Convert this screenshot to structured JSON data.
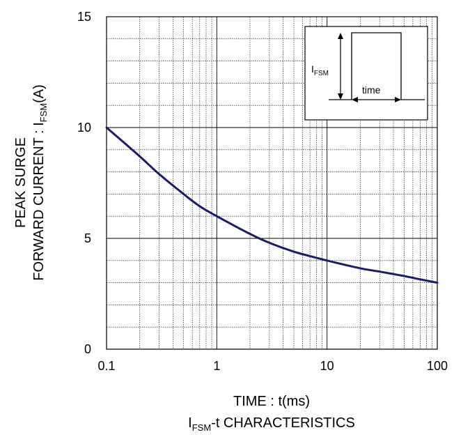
{
  "chart_data": {
    "type": "line",
    "x_scale": "log",
    "xlim": [
      0.1,
      100
    ],
    "ylim": [
      0,
      15
    ],
    "x_ticks": [
      "0.1",
      "1",
      "10",
      "100"
    ],
    "y_ticks": [
      "0",
      "5",
      "10",
      "15"
    ],
    "grid": true,
    "series": [
      {
        "color": "#1a1a6e",
        "x": [
          0.1,
          0.2,
          0.3,
          0.5,
          0.7,
          1,
          2,
          3,
          5,
          7,
          10,
          20,
          30,
          50,
          70,
          100
        ],
        "y": [
          10.0,
          8.7,
          7.9,
          7.0,
          6.45,
          6.0,
          5.2,
          4.8,
          4.4,
          4.2,
          4.0,
          3.65,
          3.5,
          3.3,
          3.15,
          3.0
        ]
      }
    ],
    "xlabel": "TIME : t(ms)",
    "ylabel_line1": "PEAK SURGE",
    "ylabel_line2_main": "FORWARD CURRENT : I",
    "ylabel_line2_sub": "FSM",
    "ylabel_line2_unit": "(A)",
    "caption_main": "I",
    "caption_sub": "FSM",
    "caption_rest": "-t CHARACTERISTICS",
    "inset": {
      "label_main": "I",
      "label_sub": "FSM",
      "time_label": "time"
    }
  }
}
